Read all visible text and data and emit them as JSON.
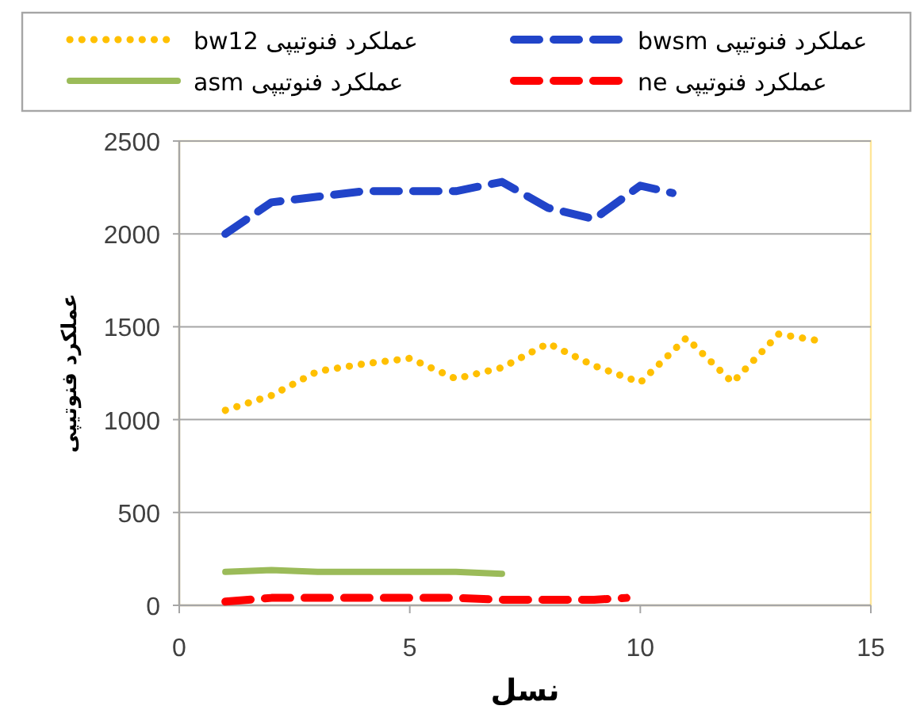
{
  "chart_data": {
    "type": "line",
    "xlabel": "نسل",
    "ylabel": "عملکرد فنوتیپی",
    "xlim": [
      0,
      15
    ],
    "xticks": [
      0,
      5,
      10,
      15
    ],
    "ylim": [
      0,
      2500
    ],
    "yticks": [
      0,
      500,
      1000,
      1500,
      2000,
      2500
    ],
    "grid": "y",
    "legend": "top",
    "marker": "none",
    "series": [
      {
        "name": "عملکرد فنوتیپی bw12",
        "color": "#ffc000",
        "line_style": "dotted",
        "x": [
          1,
          2,
          3,
          4,
          5,
          6,
          7,
          8,
          9,
          10,
          11,
          12,
          13,
          14
        ],
        "values": [
          1050,
          1130,
          1260,
          1300,
          1330,
          1220,
          1280,
          1410,
          1290,
          1200,
          1440,
          1200,
          1460,
          1420
        ]
      },
      {
        "name": "عملکرد فنوتیپی bwsm",
        "color": "#2144c9",
        "line_style": "dashed",
        "x": [
          1,
          2,
          3,
          4,
          5,
          6,
          7,
          8,
          9,
          10,
          10.7
        ],
        "values": [
          2000,
          2170,
          2200,
          2230,
          2230,
          2230,
          2280,
          2140,
          2080,
          2260,
          2220
        ]
      },
      {
        "name": "عملکرد فنوتیپی asm",
        "color": "#9bbb59",
        "line_style": "solid",
        "x": [
          1,
          2,
          3,
          4,
          5,
          6,
          7
        ],
        "values": [
          180,
          190,
          180,
          180,
          180,
          180,
          170
        ]
      },
      {
        "name": "عملکرد فنوتیپی ne",
        "color": "#ff0000",
        "line_style": "dashed",
        "x": [
          1,
          2,
          3,
          4,
          5,
          6,
          7,
          8,
          9,
          9.7
        ],
        "values": [
          20,
          40,
          40,
          40,
          40,
          40,
          30,
          30,
          30,
          40
        ]
      }
    ]
  }
}
